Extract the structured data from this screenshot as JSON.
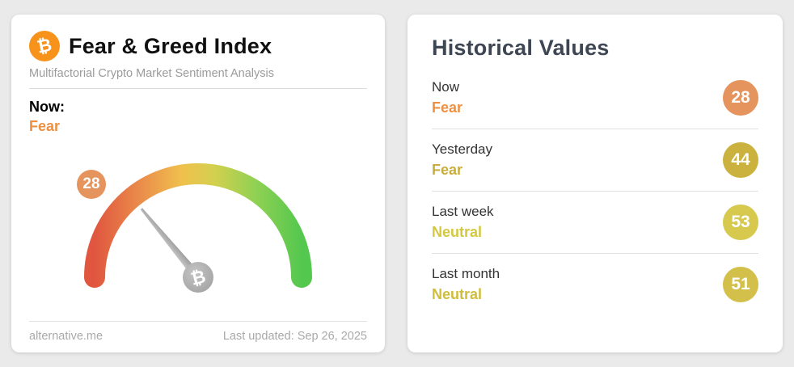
{
  "page": {
    "background": "#eaeaea"
  },
  "chart_data": {
    "type": "gauge",
    "title": "Fear & Greed Index",
    "value": 28,
    "min": 0,
    "max": 100,
    "classification": "Fear",
    "gradient_low_to_high": [
      "#e0563f",
      "#ea8c4b",
      "#f0c04d",
      "#d3d04e",
      "#8fd153",
      "#54c74f"
    ],
    "historical": [
      {
        "label": "Now",
        "value": 28,
        "classification": "Fear"
      },
      {
        "label": "Yesterday",
        "value": 44,
        "classification": "Fear"
      },
      {
        "label": "Last week",
        "value": 53,
        "classification": "Neutral"
      },
      {
        "label": "Last month",
        "value": 51,
        "classification": "Neutral"
      }
    ]
  },
  "fear_greed_card": {
    "title": "Fear & Greed Index",
    "subtitle": "Multifactorial Crypto Market Sentiment Analysis",
    "now_label": "Now:",
    "now_classification": "Fear",
    "now_value": "28",
    "gauge": {
      "value": 28,
      "min": 0,
      "max": 100
    },
    "footer": {
      "source": "alternative.me",
      "last_updated": "Last updated: Sep 26, 2025"
    },
    "colors": {
      "bitcoin_orange": "#f7931a",
      "fear_text": "#ee9040",
      "value_badge": "#e6945d",
      "gradient": [
        "#e0563f",
        "#ea8c4b",
        "#f0c04d",
        "#d3d04e",
        "#8fd153",
        "#54c74f"
      ]
    }
  },
  "historical_card": {
    "title": "Historical Values",
    "rows": [
      {
        "label": "Now",
        "classification": "Fear",
        "value": "28",
        "badge_color": "#e6945d",
        "text_color": "#ee9040"
      },
      {
        "label": "Yesterday",
        "classification": "Fear",
        "value": "44",
        "badge_color": "#cbb23f",
        "text_color": "#c9ae3b"
      },
      {
        "label": "Last week",
        "classification": "Neutral",
        "value": "53",
        "badge_color": "#d6c94d",
        "text_color": "#d3c83e"
      },
      {
        "label": "Last month",
        "classification": "Neutral",
        "value": "51",
        "badge_color": "#d2c04a",
        "text_color": "#d0bd3c"
      }
    ]
  }
}
